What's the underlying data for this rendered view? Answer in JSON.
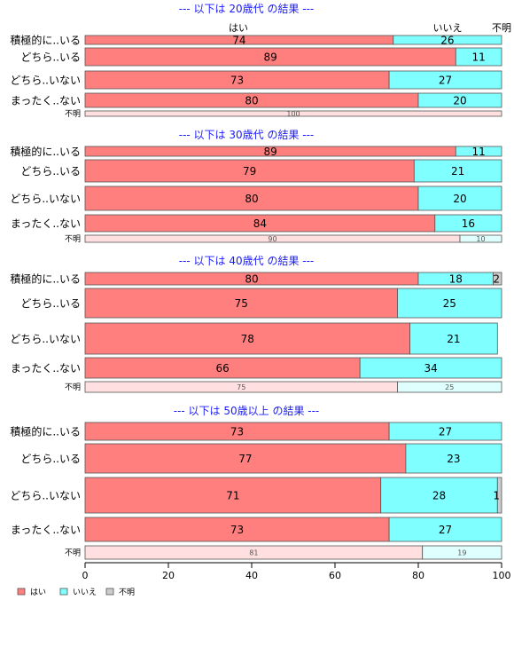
{
  "chart_data": {
    "type": "bar",
    "orientation": "horizontal",
    "stacked": true,
    "xlim": [
      0,
      100
    ],
    "x_ticks": [
      "0",
      "20",
      "40",
      "60",
      "80",
      "100"
    ],
    "legend_position": "bottom-left",
    "legend": [
      "はい",
      "いいえ",
      "不明"
    ],
    "top_labels": [
      "はい",
      "いいえ",
      "不明"
    ],
    "colors": {
      "yes": "#ff7f7f",
      "no": "#7fffff",
      "unknown": "#cccccc",
      "yes_light": "#ffdfdf",
      "no_light": "#dfffff",
      "title": "#1a1aff",
      "border": "#555555"
    },
    "panels": [
      {
        "title": "--- 以下は 20歳代 の結果 ---",
        "categories": [
          "積極的に..いる",
          "どちら..いる",
          "どちら..いない",
          "まったく..ない",
          "不明"
        ],
        "series": [
          {
            "name": "はい",
            "values": [
              74,
              89,
              73,
              80,
              0
            ]
          },
          {
            "name": "いいえ",
            "values": [
              26,
              11,
              27,
              20,
              0
            ]
          },
          {
            "name": "不明",
            "values": [
              0,
              0,
              0,
              0,
              100
            ]
          }
        ]
      },
      {
        "title": "--- 以下は 30歳代 の結果 ---",
        "categories": [
          "積極的に..いる",
          "どちら..いる",
          "どちら..いない",
          "まったく..ない",
          "不明"
        ],
        "series": [
          {
            "name": "はい",
            "values": [
              89,
              79,
              80,
              84,
              90
            ]
          },
          {
            "name": "いいえ",
            "values": [
              11,
              21,
              20,
              16,
              10
            ]
          },
          {
            "name": "不明",
            "values": [
              0,
              0,
              0,
              0,
              0
            ]
          }
        ]
      },
      {
        "title": "--- 以下は 40歳代 の結果 ---",
        "categories": [
          "積極的に..いる",
          "どちら..いる",
          "どちら..いない",
          "まったく..ない",
          "不明"
        ],
        "series": [
          {
            "name": "はい",
            "values": [
              80,
              75,
              78,
              66,
              75
            ]
          },
          {
            "name": "いいえ",
            "values": [
              18,
              25,
              21,
              34,
              25
            ]
          },
          {
            "name": "不明",
            "values": [
              2,
              0,
              0,
              0,
              0
            ]
          }
        ]
      },
      {
        "title": "--- 以下は 50歳以上 の結果 ---",
        "categories": [
          "積極的に..いる",
          "どちら..いる",
          "どちら..いない",
          "まったく..ない",
          "不明"
        ],
        "series": [
          {
            "name": "はい",
            "values": [
              73,
              77,
              71,
              73,
              81
            ]
          },
          {
            "name": "いいえ",
            "values": [
              27,
              23,
              28,
              27,
              19
            ]
          },
          {
            "name": "不明",
            "values": [
              0,
              0,
              1,
              0,
              0
            ]
          }
        ]
      }
    ]
  }
}
